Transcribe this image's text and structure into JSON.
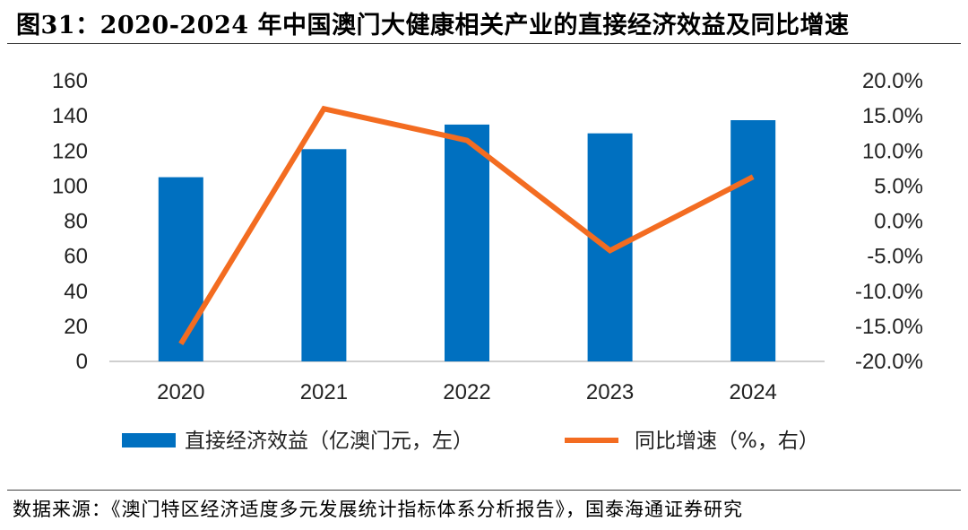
{
  "title": "图31：2020-2024 年中国澳门大健康相关产业的直接经济效益及同比增速",
  "source": "数据来源：《澳门特区经济适度多元发展统计指标体系分析报告》，国泰海通证券研究",
  "colors": {
    "bar": "#0070c0",
    "line": "#f36c21"
  },
  "chart_data": {
    "type": "bar+line",
    "categories": [
      "2020",
      "2021",
      "2022",
      "2023",
      "2024"
    ],
    "series": [
      {
        "name": "直接经济效益（亿澳门元，左）",
        "type": "bar",
        "axis": "left",
        "values": [
          105,
          121,
          135,
          130,
          137.5
        ]
      },
      {
        "name": "同比增速（%，右）",
        "type": "line",
        "axis": "right",
        "values": [
          -17.5,
          16.0,
          11.5,
          -4.2,
          6.3
        ]
      }
    ],
    "y_left": {
      "min": 0,
      "max": 160,
      "step": 20,
      "ticks": [
        "0",
        "20",
        "40",
        "60",
        "80",
        "100",
        "120",
        "140",
        "160"
      ]
    },
    "y_right": {
      "min": -20,
      "max": 20,
      "step": 5,
      "ticks": [
        "-20.0%",
        "-15.0%",
        "-10.0%",
        "-5.0%",
        "0.0%",
        "5.0%",
        "10.0%",
        "15.0%",
        "20.0%"
      ]
    },
    "grid": false,
    "legend_position": "bottom"
  }
}
